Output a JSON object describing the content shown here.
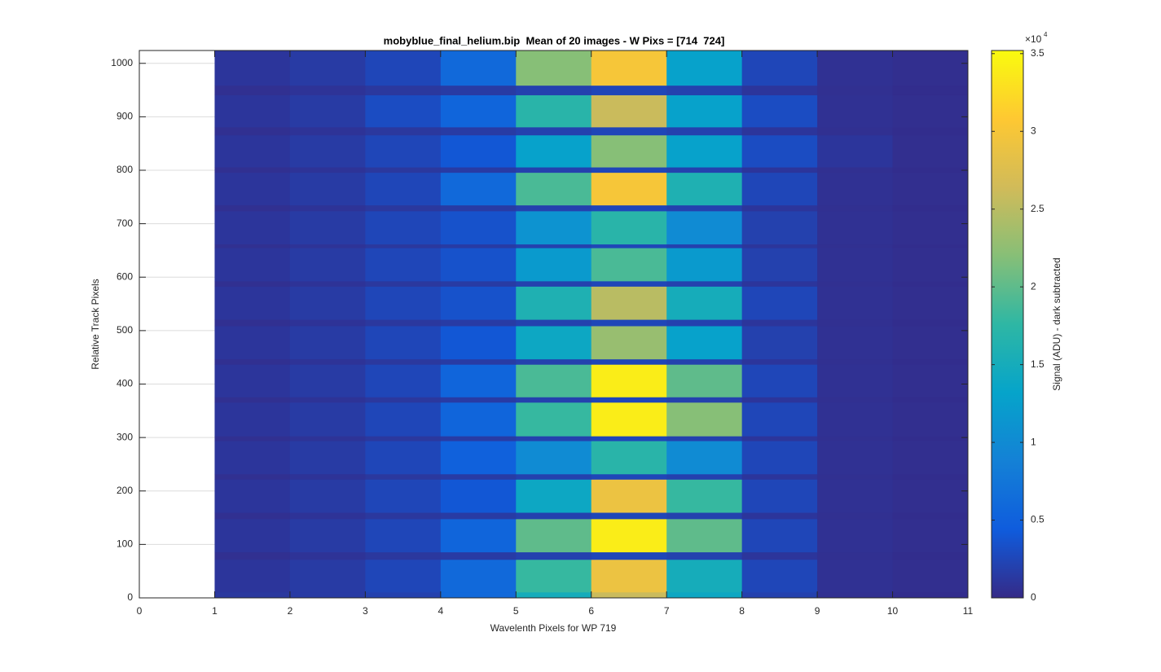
{
  "chart_data": {
    "type": "heatmap",
    "title": "mobyblue_final_helium.bip  Mean of 20 images - W Pixs = [714  724]",
    "x_label": "Wavelenth Pixels for WP 719",
    "y_label": "Relative Track Pixels",
    "colorbar_label": "Signal (ADU) - dark subtracted",
    "colorbar_multiplier": {
      "base": "×10",
      "exponent": "4"
    },
    "x_edges": [
      1,
      2,
      3,
      4,
      5,
      6,
      7,
      8,
      9,
      10,
      11
    ],
    "y_edges": [
      0,
      11,
      72,
      86,
      148,
      160,
      222,
      232,
      294,
      303,
      366,
      376,
      437,
      447,
      509,
      521,
      583,
      593,
      655,
      662,
      724,
      735,
      796,
      806,
      866,
      881,
      941,
      959,
      1024
    ],
    "z": [
      [
        0.12,
        0.15,
        0.2,
        0.6,
        1.5,
        2.6,
        1.4,
        0.2,
        0.05,
        0.03
      ],
      [
        0.1,
        0.15,
        0.25,
        0.6,
        1.8,
        2.9,
        1.5,
        0.25,
        0.06,
        0.04
      ],
      [
        0.05,
        0.08,
        0.12,
        0.15,
        0.2,
        0.25,
        0.2,
        0.1,
        0.05,
        0.03
      ],
      [
        0.1,
        0.15,
        0.25,
        0.55,
        2.0,
        3.4,
        2.0,
        0.25,
        0.06,
        0.04
      ],
      [
        0.05,
        0.08,
        0.12,
        0.15,
        0.2,
        0.25,
        0.2,
        0.1,
        0.05,
        0.03
      ],
      [
        0.1,
        0.15,
        0.25,
        0.4,
        1.4,
        2.9,
        1.8,
        0.25,
        0.06,
        0.04
      ],
      [
        0.05,
        0.08,
        0.12,
        0.15,
        0.2,
        0.25,
        0.2,
        0.1,
        0.05,
        0.03
      ],
      [
        0.1,
        0.15,
        0.25,
        0.5,
        1.0,
        1.7,
        1.0,
        0.25,
        0.06,
        0.04
      ],
      [
        0.05,
        0.08,
        0.12,
        0.15,
        0.2,
        0.25,
        0.2,
        0.1,
        0.05,
        0.03
      ],
      [
        0.1,
        0.15,
        0.25,
        0.55,
        1.8,
        3.4,
        2.2,
        0.25,
        0.06,
        0.04
      ],
      [
        0.05,
        0.08,
        0.12,
        0.15,
        0.2,
        0.25,
        0.2,
        0.1,
        0.05,
        0.03
      ],
      [
        0.1,
        0.15,
        0.25,
        0.55,
        1.9,
        3.4,
        2.0,
        0.25,
        0.06,
        0.04
      ],
      [
        0.05,
        0.08,
        0.12,
        0.15,
        0.2,
        0.25,
        0.2,
        0.1,
        0.05,
        0.03
      ],
      [
        0.1,
        0.15,
        0.25,
        0.4,
        1.4,
        2.3,
        1.3,
        0.2,
        0.06,
        0.04
      ],
      [
        0.05,
        0.08,
        0.12,
        0.15,
        0.2,
        0.25,
        0.2,
        0.1,
        0.05,
        0.03
      ],
      [
        0.1,
        0.15,
        0.25,
        0.35,
        1.6,
        2.5,
        1.5,
        0.25,
        0.06,
        0.04
      ],
      [
        0.05,
        0.08,
        0.12,
        0.15,
        0.2,
        0.25,
        0.2,
        0.1,
        0.05,
        0.03
      ],
      [
        0.1,
        0.15,
        0.25,
        0.35,
        1.2,
        1.9,
        1.2,
        0.2,
        0.06,
        0.04
      ],
      [
        0.05,
        0.08,
        0.12,
        0.15,
        0.2,
        0.25,
        0.2,
        0.1,
        0.05,
        0.03
      ],
      [
        0.1,
        0.15,
        0.25,
        0.35,
        1.1,
        1.7,
        1.0,
        0.2,
        0.06,
        0.04
      ],
      [
        0.05,
        0.08,
        0.12,
        0.15,
        0.2,
        0.25,
        0.2,
        0.1,
        0.05,
        0.03
      ],
      [
        0.1,
        0.15,
        0.25,
        0.6,
        1.9,
        3.0,
        1.6,
        0.25,
        0.06,
        0.04
      ],
      [
        0.05,
        0.08,
        0.12,
        0.15,
        0.2,
        0.25,
        0.2,
        0.1,
        0.05,
        0.03
      ],
      [
        0.1,
        0.15,
        0.25,
        0.4,
        1.3,
        2.2,
        1.3,
        0.3,
        0.1,
        0.04
      ],
      [
        0.05,
        0.08,
        0.12,
        0.15,
        0.2,
        0.25,
        0.2,
        0.1,
        0.05,
        0.03
      ],
      [
        0.1,
        0.15,
        0.3,
        0.55,
        1.7,
        2.6,
        1.3,
        0.3,
        0.06,
        0.04
      ],
      [
        0.05,
        0.08,
        0.12,
        0.15,
        0.2,
        0.25,
        0.2,
        0.1,
        0.05,
        0.03
      ],
      [
        0.1,
        0.15,
        0.25,
        0.6,
        2.2,
        3.0,
        1.3,
        0.25,
        0.06,
        0.04
      ]
    ],
    "colormap": [
      "#352a87",
      "#0f5cdd",
      "#1481d6",
      "#06a4ca",
      "#2eb7a4",
      "#87bf77",
      "#d1bb59",
      "#fec832",
      "#f9fb0e"
    ],
    "xlim": [
      0,
      11
    ],
    "xticks": [
      0,
      1,
      2,
      3,
      4,
      5,
      6,
      7,
      8,
      9,
      10,
      11
    ],
    "ylim": [
      0,
      1024
    ],
    "yticks": [
      0,
      100,
      200,
      300,
      400,
      500,
      600,
      700,
      800,
      900,
      1000
    ],
    "clim": [
      0,
      3.52
    ],
    "cticks": [
      0,
      0.5,
      1,
      1.5,
      2,
      2.5,
      3,
      3.5
    ],
    "ygrid": true
  }
}
